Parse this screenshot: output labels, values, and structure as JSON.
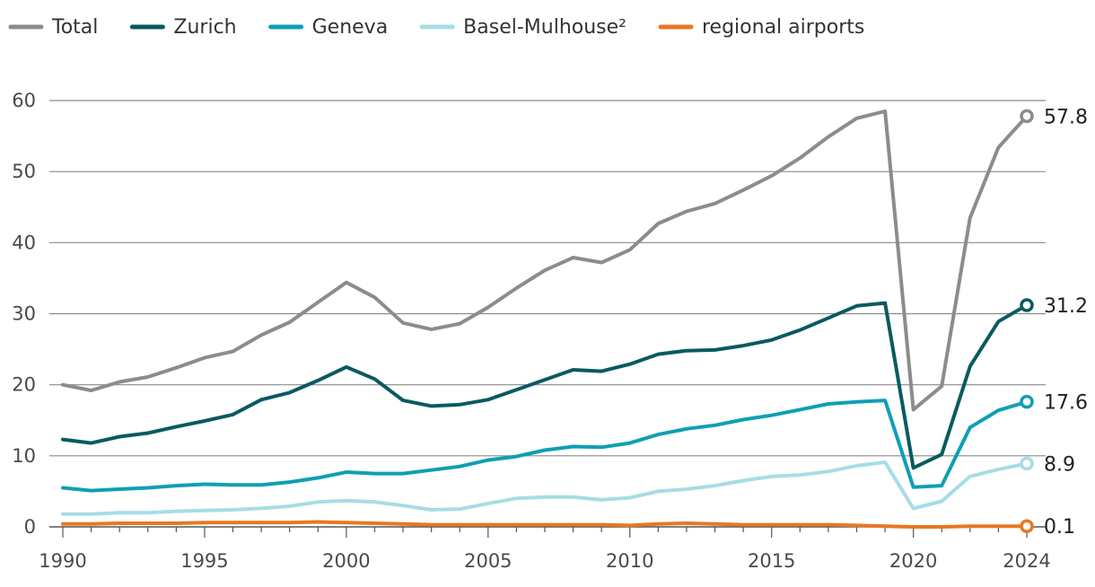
{
  "chart_data": {
    "type": "line",
    "title": "",
    "xlabel": "",
    "ylabel": "",
    "ylim": [
      0,
      60
    ],
    "yticks": [
      0,
      10,
      20,
      30,
      40,
      50,
      60
    ],
    "xticks": [
      1990,
      1995,
      2000,
      2005,
      2010,
      2015,
      2020,
      2024
    ],
    "legend_position": "top",
    "x": [
      1990,
      1991,
      1992,
      1993,
      1994,
      1995,
      1996,
      1997,
      1998,
      1999,
      2000,
      2001,
      2002,
      2003,
      2004,
      2005,
      2006,
      2007,
      2008,
      2009,
      2010,
      2011,
      2012,
      2013,
      2014,
      2015,
      2016,
      2017,
      2018,
      2019,
      2020,
      2021,
      2022,
      2023,
      2024
    ],
    "series": [
      {
        "name": "Total",
        "color": "#8c8c8c",
        "end_label": "57.8",
        "values": [
          20.0,
          19.2,
          20.4,
          21.1,
          22.4,
          23.8,
          24.7,
          27.0,
          28.8,
          31.6,
          34.4,
          32.3,
          28.7,
          27.8,
          28.6,
          30.9,
          33.6,
          36.1,
          37.9,
          37.2,
          39.0,
          42.7,
          44.4,
          45.5,
          47.4,
          49.4,
          51.9,
          54.9,
          57.5,
          58.5,
          16.5,
          19.8,
          43.5,
          53.4,
          57.8
        ]
      },
      {
        "name": "Zurich",
        "color": "#0a5a60",
        "end_label": "31.2",
        "values": [
          12.3,
          11.8,
          12.7,
          13.2,
          14.1,
          14.9,
          15.8,
          17.9,
          18.9,
          20.6,
          22.5,
          20.8,
          17.8,
          17.0,
          17.2,
          17.9,
          19.3,
          20.7,
          22.1,
          21.9,
          22.9,
          24.3,
          24.8,
          24.9,
          25.5,
          26.3,
          27.7,
          29.4,
          31.1,
          31.5,
          8.3,
          10.2,
          22.6,
          28.9,
          31.2
        ]
      },
      {
        "name": "Geneva",
        "color": "#0e9fb4",
        "end_label": "17.6",
        "values": [
          5.5,
          5.1,
          5.3,
          5.5,
          5.8,
          6.0,
          5.9,
          5.9,
          6.3,
          6.9,
          7.7,
          7.5,
          7.5,
          8.0,
          8.5,
          9.4,
          9.9,
          10.8,
          11.3,
          11.2,
          11.8,
          13.0,
          13.8,
          14.3,
          15.1,
          15.7,
          16.5,
          17.3,
          17.6,
          17.8,
          5.6,
          5.8,
          14.0,
          16.4,
          17.6
        ]
      },
      {
        "name": "Basel-Mulhouse²",
        "color": "#a6dde4",
        "end_label": "8.9",
        "values": [
          1.8,
          1.8,
          2.0,
          2.0,
          2.2,
          2.3,
          2.4,
          2.6,
          2.9,
          3.5,
          3.7,
          3.5,
          3.0,
          2.4,
          2.5,
          3.3,
          4.0,
          4.2,
          4.2,
          3.8,
          4.1,
          5.0,
          5.3,
          5.8,
          6.5,
          7.1,
          7.3,
          7.8,
          8.6,
          9.1,
          2.6,
          3.6,
          7.1,
          8.1,
          8.9
        ]
      },
      {
        "name": "regional airports",
        "color": "#e87722",
        "end_label": "0.1",
        "values": [
          0.4,
          0.4,
          0.5,
          0.5,
          0.5,
          0.6,
          0.6,
          0.6,
          0.6,
          0.7,
          0.6,
          0.5,
          0.4,
          0.3,
          0.3,
          0.3,
          0.3,
          0.3,
          0.3,
          0.3,
          0.2,
          0.4,
          0.5,
          0.4,
          0.3,
          0.3,
          0.3,
          0.3,
          0.2,
          0.1,
          0.0,
          0.0,
          0.1,
          0.1,
          0.1
        ]
      }
    ]
  }
}
